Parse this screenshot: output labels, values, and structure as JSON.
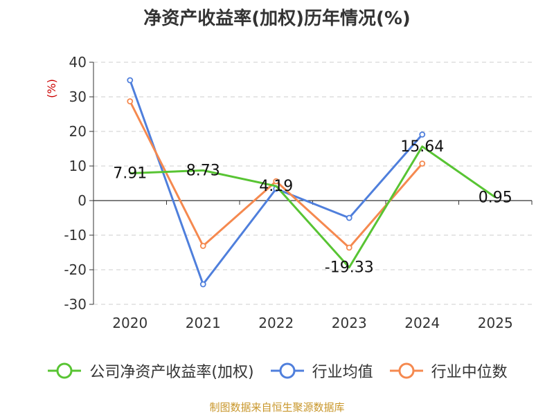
{
  "title": "净资产收益率(加权)历年情况(%)",
  "source_note": "制图数据来自恒生聚源数据库",
  "chart_data": {
    "type": "line",
    "ylabel": "(%)",
    "ylim": [
      -30,
      40
    ],
    "yticks": [
      40,
      30,
      20,
      10,
      0,
      -10,
      -20,
      -30
    ],
    "categories": [
      "2020",
      "2021",
      "2022",
      "2023",
      "2024",
      "2025"
    ],
    "grid": true,
    "legend_position": "bottom",
    "series": [
      {
        "name": "公司净资产收益率(加权)",
        "color": "#58c433",
        "values": [
          7.91,
          8.73,
          4.19,
          -19.33,
          15.64,
          0.95
        ],
        "value_labels": [
          "7.91",
          "8.73",
          "4.19",
          "-19.33",
          "15.64",
          "0.95"
        ]
      },
      {
        "name": "行业均值",
        "color": "#4f7fdc",
        "values": [
          34.8,
          -24.2,
          3.4,
          -5.0,
          19.1,
          null
        ]
      },
      {
        "name": "行业中位数",
        "color": "#f5894f",
        "values": [
          28.7,
          -13.1,
          5.6,
          -13.6,
          10.7,
          null
        ]
      }
    ]
  }
}
